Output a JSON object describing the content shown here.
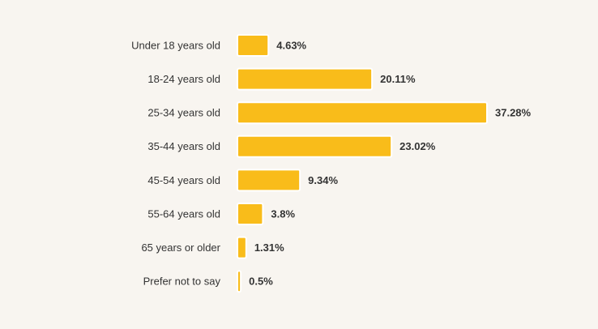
{
  "chart_data": {
    "type": "bar",
    "orientation": "horizontal",
    "categories": [
      "Under 18 years old",
      "18-24 years old",
      "25-34 years old",
      "35-44 years old",
      "45-54 years old",
      "55-64 years old",
      "65 years or older",
      "Prefer not to say"
    ],
    "values": [
      4.63,
      20.11,
      37.28,
      23.02,
      9.34,
      3.8,
      1.31,
      0.5
    ],
    "value_labels": [
      "4.63%",
      "20.11%",
      "37.28%",
      "23.02%",
      "9.34%",
      "3.8%",
      "1.31%",
      "0.5%"
    ],
    "color": "#f9bc1a"
  }
}
